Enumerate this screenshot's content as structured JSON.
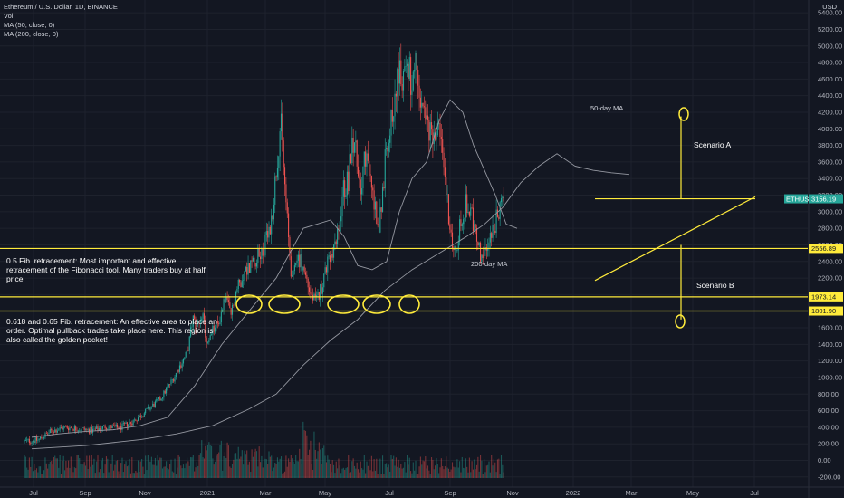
{
  "legend": {
    "title": "Ethereum / U.S. Dollar, 1D, BINANCE",
    "vol": "Vol",
    "ma50": "MA (50, close, 0)",
    "ma200": "MA (200, close, 0)"
  },
  "currency_label": "USD",
  "annotations": {
    "fib05": "0.5 Fib. retracement: Most important and effective retracement of the Fibonacci tool. Many traders buy at half price!",
    "fib618": "0.618 and 0.65 Fib. retracement: An effective area to place an order. Optimal pullback trades take place here. This region is also called the golden pocket!",
    "scenario_a": "Scenario A",
    "scenario_b": "Scenario B",
    "ma50_label": "50-day MA",
    "ma200_label": "200-day MA"
  },
  "price_tags": {
    "current_symbol": "ETHUSD",
    "current_value": "3156.19",
    "fib05_value": "2556.89",
    "fib618_value": "1973.14",
    "fib065_value": "1801.90"
  },
  "colors": {
    "background": "#131722",
    "up": "#26a69a",
    "down": "#ef5350",
    "annotation": "#ffeb3b",
    "ma": "#9598a1",
    "current_tag": "#26a69a"
  },
  "chart_data": {
    "type": "candlestick",
    "title": "Ethereum / U.S. Dollar, 1D, BINANCE",
    "y_axis_ticks": [
      -200,
      0,
      200,
      400,
      600,
      800,
      1000,
      1200,
      1400,
      1600,
      1800,
      2000,
      2200,
      2400,
      2600,
      2800,
      3000,
      3200,
      3400,
      3600,
      3800,
      4000,
      4200,
      4400,
      4600,
      4800,
      5000,
      5200,
      5400
    ],
    "y_axis_tick_labels": [
      "-200.00",
      "0.00",
      "200.00",
      "400.00",
      "600.00",
      "800.00",
      "1000.00",
      "1200.00",
      "1400.00",
      "1600.00",
      "1800.00",
      "2000.00",
      "2200.00",
      "2400.00",
      "2600.00",
      "2800.00",
      "3000.00",
      "3200.00",
      "3400.00",
      "3600.00",
      "3800.00",
      "4000.00",
      "4200.00",
      "4400.00",
      "4600.00",
      "4800.00",
      "5000.00",
      "5200.00",
      "5400.00"
    ],
    "x_axis_labels": [
      "Jul",
      "Sep",
      "Nov",
      "2021",
      "Mar",
      "May",
      "Jul",
      "Sep",
      "Nov",
      "2022",
      "Mar",
      "May",
      "Jul"
    ],
    "ylim": [
      -260,
      5480
    ],
    "close_path": [
      [
        0,
        230
      ],
      [
        15,
        245
      ],
      [
        30,
        355
      ],
      [
        45,
        400
      ],
      [
        60,
        380
      ],
      [
        75,
        360
      ],
      [
        90,
        410
      ],
      [
        105,
        390
      ],
      [
        120,
        470
      ],
      [
        135,
        600
      ],
      [
        150,
        740
      ],
      [
        165,
        1000
      ],
      [
        172,
        1150
      ],
      [
        180,
        1300
      ],
      [
        186,
        1720
      ],
      [
        190,
        1600
      ],
      [
        196,
        1800
      ],
      [
        202,
        1380
      ],
      [
        208,
        1570
      ],
      [
        214,
        1640
      ],
      [
        222,
        1980
      ],
      [
        228,
        1750
      ],
      [
        234,
        2050
      ],
      [
        242,
        2250
      ],
      [
        252,
        2400
      ],
      [
        262,
        2500
      ],
      [
        272,
        2800
      ],
      [
        278,
        3500
      ],
      [
        283,
        4100
      ],
      [
        287,
        3400
      ],
      [
        292,
        2600
      ],
      [
        296,
        2100
      ],
      [
        300,
        2500
      ],
      [
        305,
        2400
      ],
      [
        310,
        2250
      ],
      [
        316,
        2000
      ],
      [
        322,
        1900
      ],
      [
        328,
        2100
      ],
      [
        334,
        2350
      ],
      [
        340,
        2450
      ],
      [
        346,
        2700
      ],
      [
        352,
        3250
      ],
      [
        358,
        3400
      ],
      [
        362,
        3950
      ],
      [
        366,
        3700
      ],
      [
        371,
        3300
      ],
      [
        376,
        3650
      ],
      [
        382,
        3400
      ],
      [
        387,
        3050
      ],
      [
        392,
        2850
      ],
      [
        396,
        3300
      ],
      [
        400,
        3850
      ],
      [
        406,
        4150
      ],
      [
        412,
        4650
      ],
      [
        418,
        4600
      ],
      [
        422,
        4850
      ],
      [
        428,
        4500
      ],
      [
        432,
        4700
      ],
      [
        436,
        4300
      ],
      [
        442,
        4150
      ],
      [
        448,
        3900
      ],
      [
        454,
        4050
      ],
      [
        460,
        3800
      ],
      [
        466,
        3250
      ],
      [
        472,
        2600
      ],
      [
        476,
        2450
      ],
      [
        482,
        2900
      ],
      [
        488,
        3100
      ],
      [
        494,
        2950
      ],
      [
        500,
        2600
      ],
      [
        506,
        2400
      ],
      [
        512,
        2650
      ],
      [
        518,
        2800
      ],
      [
        524,
        3000
      ],
      [
        530,
        3150
      ]
    ],
    "ma50_path": [
      [
        0,
        280
      ],
      [
        30,
        320
      ],
      [
        60,
        350
      ],
      [
        90,
        370
      ],
      [
        120,
        420
      ],
      [
        150,
        520
      ],
      [
        180,
        900
      ],
      [
        210,
        1400
      ],
      [
        240,
        1800
      ],
      [
        270,
        2200
      ],
      [
        300,
        2800
      ],
      [
        330,
        2900
      ],
      [
        345,
        2700
      ],
      [
        360,
        2350
      ],
      [
        376,
        2300
      ],
      [
        392,
        2400
      ],
      [
        406,
        3000
      ],
      [
        420,
        3400
      ],
      [
        436,
        3600
      ],
      [
        450,
        4100
      ],
      [
        462,
        4350
      ],
      [
        476,
        4200
      ],
      [
        488,
        3800
      ],
      [
        500,
        3500
      ],
      [
        512,
        3200
      ],
      [
        524,
        2850
      ],
      [
        536,
        2800
      ]
    ],
    "ma200_path": [
      [
        0,
        140
      ],
      [
        60,
        180
      ],
      [
        120,
        250
      ],
      [
        160,
        320
      ],
      [
        200,
        420
      ],
      [
        240,
        620
      ],
      [
        270,
        800
      ],
      [
        300,
        1150
      ],
      [
        330,
        1450
      ],
      [
        360,
        1700
      ],
      [
        390,
        2050
      ],
      [
        420,
        2300
      ],
      [
        450,
        2500
      ],
      [
        480,
        2700
      ],
      [
        500,
        2850
      ],
      [
        520,
        3050
      ],
      [
        540,
        3350
      ],
      [
        560,
        3550
      ],
      [
        580,
        3700
      ],
      [
        600,
        3550
      ],
      [
        620,
        3500
      ],
      [
        640,
        3470
      ],
      [
        660,
        3450
      ]
    ],
    "fib_levels": {
      "0.5": 2556.89,
      "0.618": 1973.14,
      "0.65": 1801.9
    },
    "current_price": 3156.19
  }
}
